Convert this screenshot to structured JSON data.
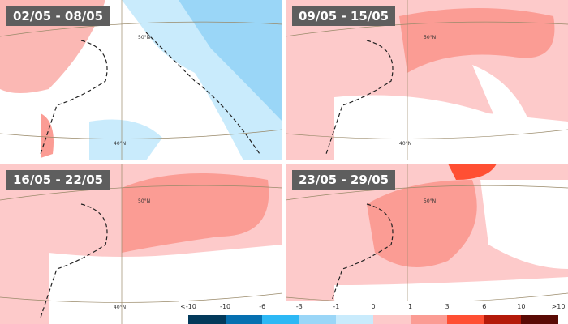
{
  "panels": [
    {
      "period": "02/05 - 08/05",
      "lat50": "50°N",
      "lat40": "40°N"
    },
    {
      "period": "09/05 - 15/05",
      "lat50": "50°N",
      "lat40": "40°N"
    },
    {
      "period": "16/05 - 22/05",
      "lat50": "50°N",
      "lat40": "40°N"
    },
    {
      "period": "23/05 - 29/05",
      "lat50": "50°N",
      "lat40": "40°N"
    }
  ],
  "legend": {
    "labels": [
      "<-10",
      "-10",
      "-6",
      "-3",
      "-1",
      "0",
      "1",
      "3",
      "6",
      "10",
      ">10"
    ],
    "colors": [
      "#033a5b",
      "#0670b0",
      "#2db8f5",
      "#9ad6f7",
      "#c9ebfc",
      "#fdcaca",
      "#fb9c94",
      "#ff4f33",
      "#b41a0a",
      "#5a0a05"
    ]
  }
}
